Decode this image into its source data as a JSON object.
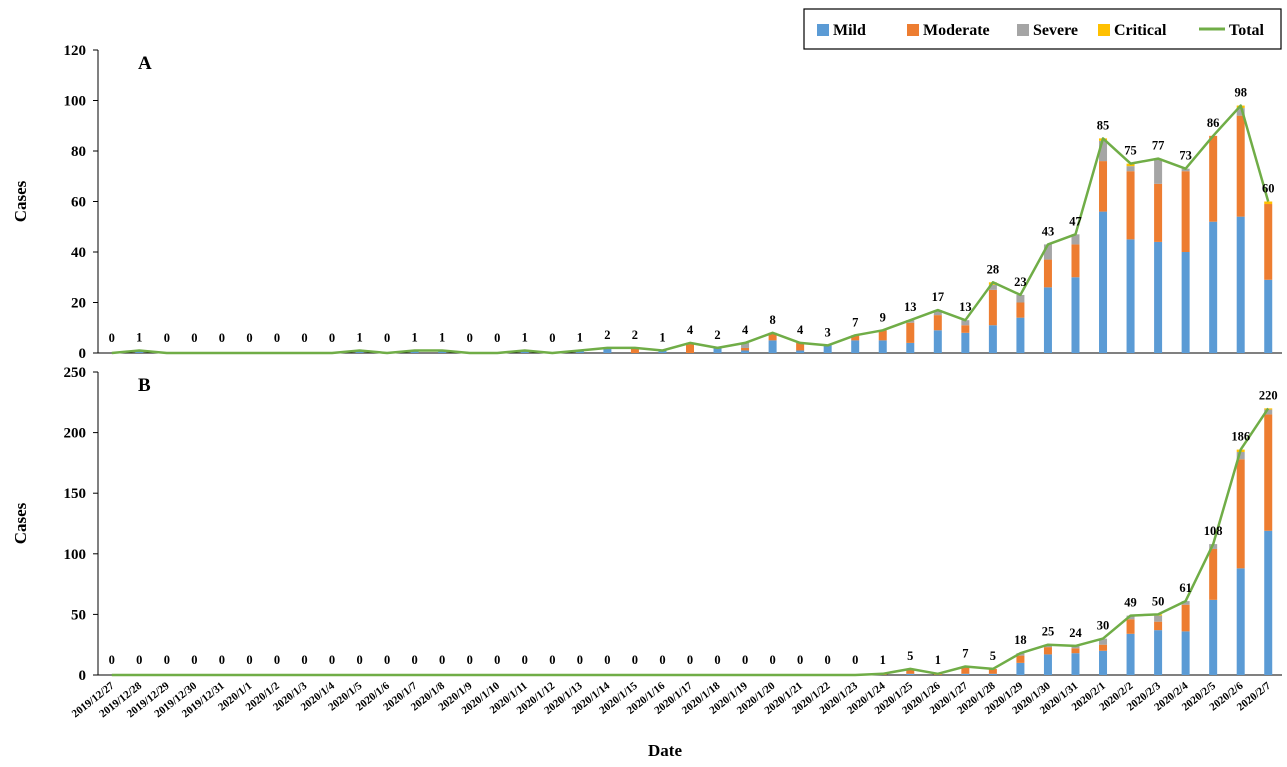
{
  "chart_data": {
    "type": "bar",
    "stacked": true,
    "with_total_line": true,
    "xlabel": "Date",
    "dates": [
      "2019/12/27",
      "2019/12/28",
      "2019/12/29",
      "2019/12/30",
      "2019/12/31",
      "2020/1/1",
      "2020/1/2",
      "2020/1/3",
      "2020/1/4",
      "2020/1/5",
      "2020/1/6",
      "2020/1/7",
      "2020/1/8",
      "2020/1/9",
      "2020/1/10",
      "2020/1/11",
      "2020/1/12",
      "2020/1/13",
      "2020/1/14",
      "2020/1/15",
      "2020/1/16",
      "2020/1/17",
      "2020/1/18",
      "2020/1/19",
      "2020/1/20",
      "2020/1/21",
      "2020/1/22",
      "2020/1/23",
      "2020/1/24",
      "2020/1/25",
      "2020/1/26",
      "2020/1/27",
      "2020/1/28",
      "2020/1/29",
      "2020/1/30",
      "2020/1/31",
      "2020/2/1",
      "2020/2/2",
      "2020/2/3",
      "2020/2/4",
      "2020/2/5",
      "2020/2/6",
      "2020/2/7"
    ],
    "legend": {
      "position": "top-right",
      "items": [
        {
          "name": "Mild",
          "color": "#5b9bd5"
        },
        {
          "name": "Moderate",
          "color": "#ed7d31"
        },
        {
          "name": "Severe",
          "color": "#a5a5a5"
        },
        {
          "name": "Critical",
          "color": "#ffc000"
        },
        {
          "name": "Total",
          "color": "#70ad47"
        }
      ]
    },
    "panels": [
      {
        "label": "A",
        "ylabel": "Cases",
        "ylim": [
          0,
          120
        ],
        "yticks": [
          0,
          20,
          40,
          60,
          80,
          100,
          120
        ],
        "series": [
          {
            "name": "Mild",
            "values": [
              0,
              1,
              0,
              0,
              0,
              0,
              0,
              0,
              0,
              1,
              0,
              1,
              1,
              0,
              0,
              1,
              0,
              1,
              2,
              0,
              1,
              0,
              2,
              1,
              5,
              1,
              3,
              5,
              5,
              4,
              9,
              8,
              11,
              14,
              26,
              30,
              56,
              45,
              44,
              40,
              52,
              54,
              29
            ]
          },
          {
            "name": "Moderate",
            "values": [
              0,
              0,
              0,
              0,
              0,
              0,
              0,
              0,
              0,
              0,
              0,
              0,
              0,
              0,
              0,
              0,
              0,
              0,
              0,
              2,
              0,
              4,
              0,
              1,
              3,
              3,
              0,
              2,
              4,
              8,
              6,
              3,
              14,
              6,
              11,
              13,
              20,
              27,
              23,
              32,
              34,
              40,
              30
            ]
          },
          {
            "name": "Severe",
            "values": [
              0,
              0,
              0,
              0,
              0,
              0,
              0,
              0,
              0,
              0,
              0,
              0,
              0,
              0,
              0,
              0,
              0,
              0,
              0,
              0,
              0,
              0,
              0,
              2,
              0,
              0,
              0,
              0,
              0,
              1,
              2,
              2,
              2,
              3,
              6,
              4,
              8,
              2,
              10,
              1,
              0,
              3,
              0
            ]
          },
          {
            "name": "Critical",
            "values": [
              0,
              0,
              0,
              0,
              0,
              0,
              0,
              0,
              0,
              0,
              0,
              0,
              0,
              0,
              0,
              0,
              0,
              0,
              0,
              0,
              0,
              0,
              0,
              0,
              0,
              0,
              0,
              0,
              0,
              0,
              0,
              0,
              1,
              0,
              0,
              0,
              1,
              1,
              0,
              0,
              0,
              1,
              1
            ]
          },
          {
            "name": "Total",
            "values": [
              0,
              1,
              0,
              0,
              0,
              0,
              0,
              0,
              0,
              1,
              0,
              1,
              1,
              0,
              0,
              1,
              0,
              1,
              2,
              2,
              1,
              4,
              2,
              4,
              8,
              4,
              3,
              7,
              9,
              13,
              17,
              13,
              28,
              23,
              43,
              47,
              85,
              75,
              77,
              73,
              86,
              98,
              60
            ]
          }
        ]
      },
      {
        "label": "B",
        "ylabel": "Cases",
        "ylim": [
          0,
          250
        ],
        "yticks": [
          0,
          50,
          100,
          150,
          200,
          250
        ],
        "series": [
          {
            "name": "Mild",
            "values": [
              0,
              0,
              0,
              0,
              0,
              0,
              0,
              0,
              0,
              0,
              0,
              0,
              0,
              0,
              0,
              0,
              0,
              0,
              0,
              0,
              0,
              0,
              0,
              0,
              0,
              0,
              0,
              0,
              0,
              1,
              0,
              1,
              1,
              10,
              17,
              18,
              20,
              34,
              37,
              36,
              62,
              88,
              119
            ]
          },
          {
            "name": "Moderate",
            "values": [
              0,
              0,
              0,
              0,
              0,
              0,
              0,
              0,
              0,
              0,
              0,
              0,
              0,
              0,
              0,
              0,
              0,
              0,
              0,
              0,
              0,
              0,
              0,
              0,
              0,
              0,
              0,
              0,
              1,
              4,
              1,
              6,
              4,
              6,
              6,
              4,
              5,
              12,
              7,
              22,
              42,
              90,
              96
            ]
          },
          {
            "name": "Severe",
            "values": [
              0,
              0,
              0,
              0,
              0,
              0,
              0,
              0,
              0,
              0,
              0,
              0,
              0,
              0,
              0,
              0,
              0,
              0,
              0,
              0,
              0,
              0,
              0,
              0,
              0,
              0,
              0,
              0,
              0,
              0,
              0,
              0,
              0,
              2,
              2,
              2,
              5,
              3,
              5,
              3,
              4,
              6,
              4
            ]
          },
          {
            "name": "Critical",
            "values": [
              0,
              0,
              0,
              0,
              0,
              0,
              0,
              0,
              0,
              0,
              0,
              0,
              0,
              0,
              0,
              0,
              0,
              0,
              0,
              0,
              0,
              0,
              0,
              0,
              0,
              0,
              0,
              0,
              0,
              0,
              0,
              0,
              0,
              0,
              0,
              0,
              0,
              0,
              1,
              0,
              0,
              2,
              1
            ]
          },
          {
            "name": "Total",
            "values": [
              0,
              0,
              0,
              0,
              0,
              0,
              0,
              0,
              0,
              0,
              0,
              0,
              0,
              0,
              0,
              0,
              0,
              0,
              0,
              0,
              0,
              0,
              0,
              0,
              0,
              0,
              0,
              0,
              1,
              5,
              1,
              7,
              5,
              18,
              25,
              24,
              30,
              49,
              50,
              61,
              108,
              186,
              220
            ]
          }
        ]
      }
    ]
  }
}
